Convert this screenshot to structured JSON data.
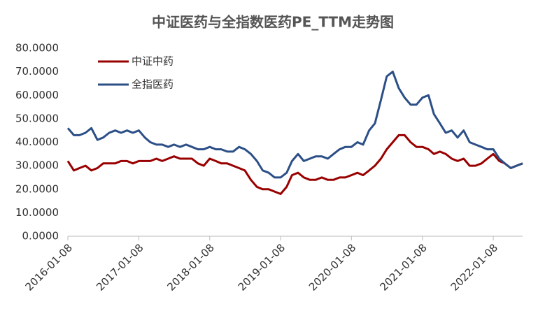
{
  "chart_data": {
    "type": "line",
    "title": "中证医药与全指数医药PE_TTM走势图",
    "x": [
      "2016-01-08",
      "2016-02-08",
      "2016-03-08",
      "2016-04-08",
      "2016-05-08",
      "2016-06-08",
      "2016-07-08",
      "2016-08-08",
      "2016-09-08",
      "2016-10-08",
      "2016-11-08",
      "2016-12-08",
      "2017-01-08",
      "2017-02-08",
      "2017-03-08",
      "2017-04-08",
      "2017-05-08",
      "2017-06-08",
      "2017-07-08",
      "2017-08-08",
      "2017-09-08",
      "2017-10-08",
      "2017-11-08",
      "2017-12-08",
      "2018-01-08",
      "2018-02-08",
      "2018-03-08",
      "2018-04-08",
      "2018-05-08",
      "2018-06-08",
      "2018-07-08",
      "2018-08-08",
      "2018-09-08",
      "2018-10-08",
      "2018-11-08",
      "2018-12-08",
      "2019-01-08",
      "2019-02-08",
      "2019-03-08",
      "2019-04-08",
      "2019-05-08",
      "2019-06-08",
      "2019-07-08",
      "2019-08-08",
      "2019-09-08",
      "2019-10-08",
      "2019-11-08",
      "2019-12-08",
      "2020-01-08",
      "2020-02-08",
      "2020-03-08",
      "2020-04-08",
      "2020-05-08",
      "2020-06-08",
      "2020-07-08",
      "2020-08-08",
      "2020-09-08",
      "2020-10-08",
      "2020-11-08",
      "2020-12-08",
      "2021-01-08",
      "2021-02-08",
      "2021-03-08",
      "2021-04-08",
      "2021-05-08",
      "2021-06-08",
      "2021-07-08",
      "2021-08-08",
      "2021-09-08",
      "2021-10-08",
      "2021-11-08",
      "2021-12-08",
      "2022-01-08",
      "2022-02-08",
      "2022-03-08",
      "2022-04-08",
      "2022-05-08",
      "2022-06-08"
    ],
    "series": [
      {
        "name": "中证中药",
        "color": "#990000",
        "values": [
          32,
          28,
          29,
          30,
          28,
          29,
          31,
          31,
          31,
          32,
          32,
          31,
          32,
          32,
          32,
          33,
          32,
          33,
          34,
          33,
          33,
          33,
          31,
          30,
          33,
          32,
          31,
          31,
          30,
          29,
          28,
          24,
          21,
          20,
          20,
          19,
          18,
          21,
          26,
          27,
          25,
          24,
          24,
          25,
          24,
          24,
          25,
          25,
          26,
          27,
          26,
          28,
          30,
          33,
          37,
          40,
          43,
          43,
          40,
          38,
          38,
          37,
          35,
          36,
          35,
          33,
          32,
          33,
          30,
          30,
          31,
          33,
          35,
          32,
          31,
          29,
          30,
          31
        ]
      },
      {
        "name": "全指医药",
        "color": "#2b4f86",
        "values": [
          46,
          43,
          43,
          44,
          46,
          41,
          42,
          44,
          45,
          44,
          45,
          44,
          45,
          42,
          40,
          39,
          39,
          38,
          39,
          38,
          39,
          38,
          37,
          37,
          38,
          37,
          37,
          36,
          36,
          38,
          37,
          35,
          32,
          28,
          27,
          25,
          25,
          27,
          32,
          35,
          32,
          33,
          34,
          34,
          33,
          35,
          37,
          38,
          38,
          40,
          39,
          45,
          48,
          58,
          68,
          70,
          63,
          59,
          56,
          56,
          59,
          60,
          52,
          48,
          44,
          45,
          42,
          45,
          40,
          39,
          38,
          37,
          37,
          33,
          31,
          29,
          30,
          31
        ]
      }
    ],
    "xlim": [
      "2016-01-08",
      "2022-06-08"
    ],
    "xticks": [
      "2016-01-08",
      "2017-01-08",
      "2018-01-08",
      "2019-01-08",
      "2020-01-08",
      "2021-01-08",
      "2022-01-08"
    ],
    "ylim": [
      0,
      80
    ],
    "yticks": [
      {
        "value": 0,
        "label": "0.0000"
      },
      {
        "value": 10,
        "label": "10.0000"
      },
      {
        "value": 20,
        "label": "20.0000"
      },
      {
        "value": 30,
        "label": "30.0000"
      },
      {
        "value": 40,
        "label": "40.0000"
      },
      {
        "value": 50,
        "label": "50.0000"
      },
      {
        "value": 60,
        "label": "60.0000"
      },
      {
        "value": 70,
        "label": "70.0000"
      },
      {
        "value": 80,
        "label": "80.0000"
      }
    ],
    "legend": "upper-left"
  }
}
